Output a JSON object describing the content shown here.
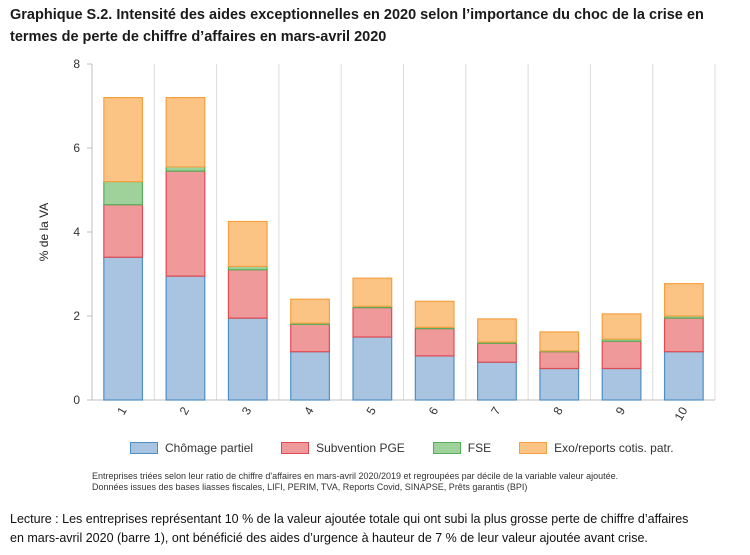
{
  "title_lines": [
    "Graphique S.2. Intensité des aides exceptionnelles en 2020 selon l’importance du choc de la crise en",
    "termes de perte de chiffre d’affaires en mars-avril 2020"
  ],
  "notes": [
    "Entreprises triées selon leur ratio de chiffre d'affaires en mars-avril 2020/2019 et regroupées par décile de la variable valeur ajoutée.",
    "Données issues des bases liasses fiscales, LIFI, PERIM, TVA, Reports Covid, SINAPSE, Prêts garantis (BPI)"
  ],
  "reading_lines": [
    "Lecture : Les entreprises représentant 10 % de la valeur ajoutée totale qui ont subi la plus grosse perte de chiffre d’affaires",
    "en mars-avril 2020 (barre 1), ont bénéficié des aides d’urgence à hauteur de 7 % de leur valeur ajoutée avant crise."
  ],
  "chart_data": {
    "type": "bar",
    "stacked": true,
    "categories": [
      "1",
      "2",
      "3",
      "4",
      "5",
      "6",
      "7",
      "8",
      "9",
      "10"
    ],
    "ylabel": "% de la VA",
    "ylim": [
      0,
      8
    ],
    "yticks": [
      "0",
      "2",
      "4",
      "6",
      "8"
    ],
    "grid": "vertical",
    "legend_position": "bottom",
    "series": [
      {
        "name": "Chômage partiel",
        "fill": "#a8c4e0",
        "stroke": "#4f8fc4",
        "values": [
          3.4,
          2.95,
          1.95,
          1.15,
          1.5,
          1.05,
          0.9,
          0.75,
          0.75,
          1.15
        ]
      },
      {
        "name": "Subvention PGE",
        "fill": "#f0999b",
        "stroke": "#e04b52",
        "values": [
          1.25,
          2.5,
          1.15,
          0.65,
          0.7,
          0.65,
          0.45,
          0.4,
          0.65,
          0.8
        ]
      },
      {
        "name": "FSE",
        "fill": "#9ed29a",
        "stroke": "#58ad58",
        "values": [
          0.55,
          0.1,
          0.08,
          0.03,
          0.03,
          0.03,
          0.03,
          0.02,
          0.05,
          0.05
        ]
      },
      {
        "name": "Exo/reports cotis. patr.",
        "fill": "#fbc384",
        "stroke": "#f5a142",
        "values": [
          2.0,
          1.65,
          1.07,
          0.57,
          0.67,
          0.62,
          0.55,
          0.45,
          0.6,
          0.77
        ]
      }
    ]
  }
}
